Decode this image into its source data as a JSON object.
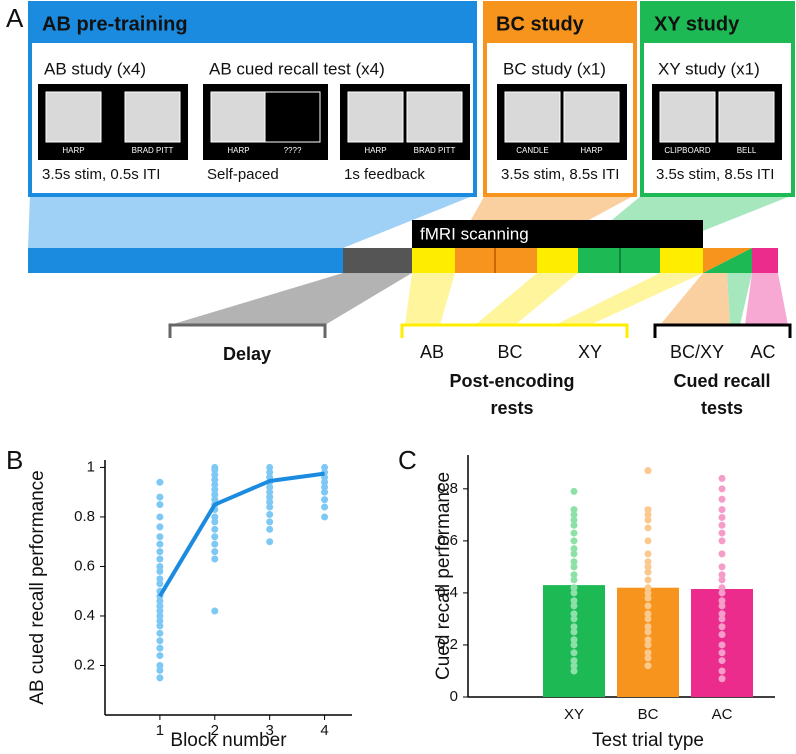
{
  "panel_labels": [
    "A",
    "B",
    "C"
  ],
  "diagram": {
    "phases": [
      {
        "title": "AB pre-training",
        "tasks": [
          {
            "label": "AB study (x4)",
            "screens": [
              {
                "captions": [
                  "HARP",
                  "BRAD PITT"
                ],
                "timing": "3.5s stim,  0.5s ITI"
              }
            ]
          },
          {
            "label": "AB cued recall test (x4)",
            "screens": [
              {
                "captions": [
                  "HARP",
                  "????"
                ],
                "timing": "Self-paced"
              },
              {
                "captions": [
                  "HARP",
                  "BRAD PITT"
                ],
                "timing": "1s feedback"
              }
            ]
          }
        ]
      },
      {
        "title": "BC study",
        "tasks": [
          {
            "label": "BC study (x1)",
            "screens": [
              {
                "captions": [
                  "CANDLE",
                  "HARP"
                ],
                "timing": "3.5s stim,  8.5s ITI"
              }
            ]
          }
        ]
      },
      {
        "title": "XY study",
        "tasks": [
          {
            "label": "XY study (x1)",
            "screens": [
              {
                "captions": [
                  "CLIPBOARD",
                  "BELL"
                ],
                "timing": "3.5s stim,  8.5s ITI"
              }
            ]
          }
        ]
      }
    ],
    "scanning": "fMRI scanning",
    "brackets": [
      {
        "title": [
          "Delay"
        ]
      },
      {
        "items": [
          "AB",
          "BC",
          "XY"
        ],
        "title": [
          "Post-encoding",
          "rests"
        ]
      },
      {
        "items": [
          "BC/XY",
          "AC"
        ],
        "title": [
          "Cued recall",
          "tests"
        ]
      }
    ]
  },
  "chart_data": [
    {
      "type": "line",
      "x_label": "Block number",
      "y_label": "AB cued recall performance",
      "x": [
        1,
        2,
        3,
        4
      ],
      "values": [
        0.48,
        0.85,
        0.945,
        0.975
      ],
      "color": "#1b8be0",
      "points": [
        [
          0.94,
          0.88,
          0.85,
          0.8,
          0.76,
          0.72,
          0.69,
          0.66,
          0.63,
          0.6,
          0.58,
          0.55,
          0.53,
          0.5,
          0.48,
          0.46,
          0.44,
          0.42,
          0.4,
          0.38,
          0.36,
          0.33,
          0.3,
          0.27,
          0.24,
          0.2,
          0.18,
          0.15
        ],
        [
          1,
          0.99,
          0.97,
          0.95,
          0.93,
          0.91,
          0.89,
          0.87,
          0.85,
          0.83,
          0.8,
          0.78,
          0.75,
          0.72,
          0.69,
          0.66,
          0.63,
          0.42
        ],
        [
          1,
          0.98,
          0.96,
          0.94,
          0.92,
          0.9,
          0.88,
          0.86,
          0.84,
          0.81,
          0.78,
          0.75,
          0.7
        ],
        [
          1,
          0.98,
          0.96,
          0.94,
          0.92,
          0.9,
          0.87,
          0.84,
          0.8
        ]
      ],
      "point_color": "#7ec8f5",
      "xlim": [
        0,
        4.5
      ],
      "xticks": [
        1,
        2,
        3,
        4
      ],
      "ylim": [
        0,
        1.03
      ],
      "yticks": [
        0.2,
        0.4,
        0.6,
        0.8,
        1
      ]
    },
    {
      "type": "bar",
      "x_label": "Test trial type",
      "y_label": "Cued recall performance",
      "categories": [
        "XY",
        "BC",
        "AC"
      ],
      "values": [
        0.43,
        0.42,
        0.415
      ],
      "colors": [
        "#1db954",
        "#f7941d",
        "#ec2c8c"
      ],
      "point_colors": [
        "#8ee0a9",
        "#fbc98e",
        "#f59cc9"
      ],
      "points": [
        [
          0.79,
          0.72,
          0.7,
          0.68,
          0.66,
          0.63,
          0.6,
          0.57,
          0.55,
          0.52,
          0.5,
          0.47,
          0.45,
          0.42,
          0.4,
          0.37,
          0.35,
          0.32,
          0.3,
          0.27,
          0.25,
          0.22,
          0.2,
          0.17,
          0.14,
          0.12,
          0.1
        ],
        [
          0.87,
          0.72,
          0.7,
          0.68,
          0.65,
          0.6,
          0.55,
          0.52,
          0.5,
          0.48,
          0.45,
          0.42,
          0.4,
          0.38,
          0.35,
          0.32,
          0.3,
          0.27,
          0.25,
          0.22,
          0.2,
          0.17,
          0.15,
          0.12
        ],
        [
          0.84,
          0.8,
          0.76,
          0.72,
          0.69,
          0.66,
          0.63,
          0.6,
          0.55,
          0.5,
          0.47,
          0.45,
          0.42,
          0.4,
          0.37,
          0.35,
          0.32,
          0.3,
          0.27,
          0.24,
          0.2,
          0.17,
          0.14,
          0.1,
          0.07
        ]
      ],
      "ylim": [
        0,
        0.93
      ],
      "yticks": [
        0,
        0.2,
        0.4,
        0.6,
        0.8
      ]
    }
  ]
}
